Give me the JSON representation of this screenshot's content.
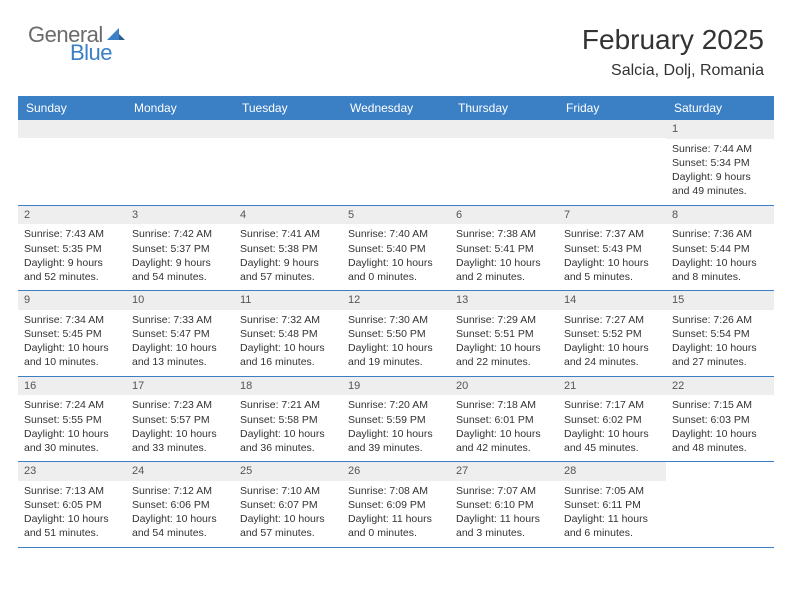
{
  "logo": {
    "general": "General",
    "blue": "Blue"
  },
  "title": "February 2025",
  "location": "Salcia, Dolj, Romania",
  "colors": {
    "accent": "#3b7fc4",
    "header_text": "#ffffff",
    "bar_bg": "#eeeeee",
    "text": "#333333",
    "logo_gray": "#6b6b6b"
  },
  "day_names": [
    "Sunday",
    "Monday",
    "Tuesday",
    "Wednesday",
    "Thursday",
    "Friday",
    "Saturday"
  ],
  "weeks": [
    [
      null,
      null,
      null,
      null,
      null,
      null,
      {
        "n": "1",
        "sr": "7:44 AM",
        "ss": "5:34 PM",
        "dl": "9 hours and 49 minutes."
      }
    ],
    [
      {
        "n": "2",
        "sr": "7:43 AM",
        "ss": "5:35 PM",
        "dl": "9 hours and 52 minutes."
      },
      {
        "n": "3",
        "sr": "7:42 AM",
        "ss": "5:37 PM",
        "dl": "9 hours and 54 minutes."
      },
      {
        "n": "4",
        "sr": "7:41 AM",
        "ss": "5:38 PM",
        "dl": "9 hours and 57 minutes."
      },
      {
        "n": "5",
        "sr": "7:40 AM",
        "ss": "5:40 PM",
        "dl": "10 hours and 0 minutes."
      },
      {
        "n": "6",
        "sr": "7:38 AM",
        "ss": "5:41 PM",
        "dl": "10 hours and 2 minutes."
      },
      {
        "n": "7",
        "sr": "7:37 AM",
        "ss": "5:43 PM",
        "dl": "10 hours and 5 minutes."
      },
      {
        "n": "8",
        "sr": "7:36 AM",
        "ss": "5:44 PM",
        "dl": "10 hours and 8 minutes."
      }
    ],
    [
      {
        "n": "9",
        "sr": "7:34 AM",
        "ss": "5:45 PM",
        "dl": "10 hours and 10 minutes."
      },
      {
        "n": "10",
        "sr": "7:33 AM",
        "ss": "5:47 PM",
        "dl": "10 hours and 13 minutes."
      },
      {
        "n": "11",
        "sr": "7:32 AM",
        "ss": "5:48 PM",
        "dl": "10 hours and 16 minutes."
      },
      {
        "n": "12",
        "sr": "7:30 AM",
        "ss": "5:50 PM",
        "dl": "10 hours and 19 minutes."
      },
      {
        "n": "13",
        "sr": "7:29 AM",
        "ss": "5:51 PM",
        "dl": "10 hours and 22 minutes."
      },
      {
        "n": "14",
        "sr": "7:27 AM",
        "ss": "5:52 PM",
        "dl": "10 hours and 24 minutes."
      },
      {
        "n": "15",
        "sr": "7:26 AM",
        "ss": "5:54 PM",
        "dl": "10 hours and 27 minutes."
      }
    ],
    [
      {
        "n": "16",
        "sr": "7:24 AM",
        "ss": "5:55 PM",
        "dl": "10 hours and 30 minutes."
      },
      {
        "n": "17",
        "sr": "7:23 AM",
        "ss": "5:57 PM",
        "dl": "10 hours and 33 minutes."
      },
      {
        "n": "18",
        "sr": "7:21 AM",
        "ss": "5:58 PM",
        "dl": "10 hours and 36 minutes."
      },
      {
        "n": "19",
        "sr": "7:20 AM",
        "ss": "5:59 PM",
        "dl": "10 hours and 39 minutes."
      },
      {
        "n": "20",
        "sr": "7:18 AM",
        "ss": "6:01 PM",
        "dl": "10 hours and 42 minutes."
      },
      {
        "n": "21",
        "sr": "7:17 AM",
        "ss": "6:02 PM",
        "dl": "10 hours and 45 minutes."
      },
      {
        "n": "22",
        "sr": "7:15 AM",
        "ss": "6:03 PM",
        "dl": "10 hours and 48 minutes."
      }
    ],
    [
      {
        "n": "23",
        "sr": "7:13 AM",
        "ss": "6:05 PM",
        "dl": "10 hours and 51 minutes."
      },
      {
        "n": "24",
        "sr": "7:12 AM",
        "ss": "6:06 PM",
        "dl": "10 hours and 54 minutes."
      },
      {
        "n": "25",
        "sr": "7:10 AM",
        "ss": "6:07 PM",
        "dl": "10 hours and 57 minutes."
      },
      {
        "n": "26",
        "sr": "7:08 AM",
        "ss": "6:09 PM",
        "dl": "11 hours and 0 minutes."
      },
      {
        "n": "27",
        "sr": "7:07 AM",
        "ss": "6:10 PM",
        "dl": "11 hours and 3 minutes."
      },
      {
        "n": "28",
        "sr": "7:05 AM",
        "ss": "6:11 PM",
        "dl": "11 hours and 6 minutes."
      },
      null
    ]
  ],
  "labels": {
    "sunrise": "Sunrise:",
    "sunset": "Sunset:",
    "daylight": "Daylight:"
  }
}
